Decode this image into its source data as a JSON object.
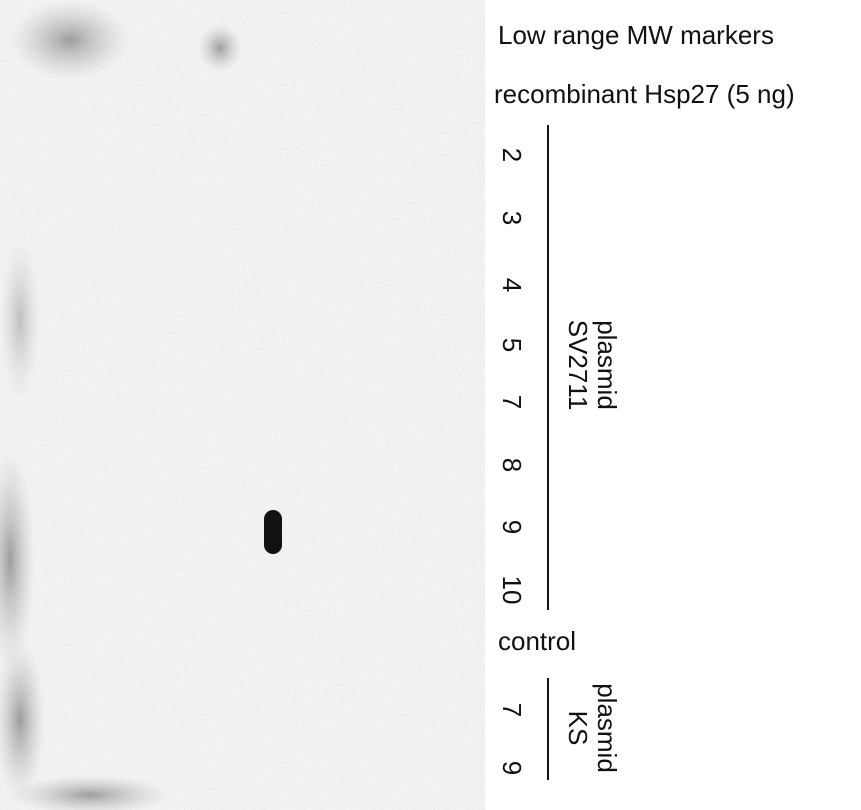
{
  "labels": {
    "markers": "Low range MW markers",
    "recombinant": "recombinant Hsp27 (5 ng)",
    "control": "control"
  },
  "groups": [
    {
      "lanes": [
        "2",
        "3",
        "4",
        "5",
        "7",
        "8",
        "9",
        "10"
      ],
      "label_line1": "plasmid",
      "label_line2": "SV2711"
    },
    {
      "lanes": [
        "7",
        "9"
      ],
      "label_line1": "plasmid",
      "label_line2": "KS"
    }
  ]
}
